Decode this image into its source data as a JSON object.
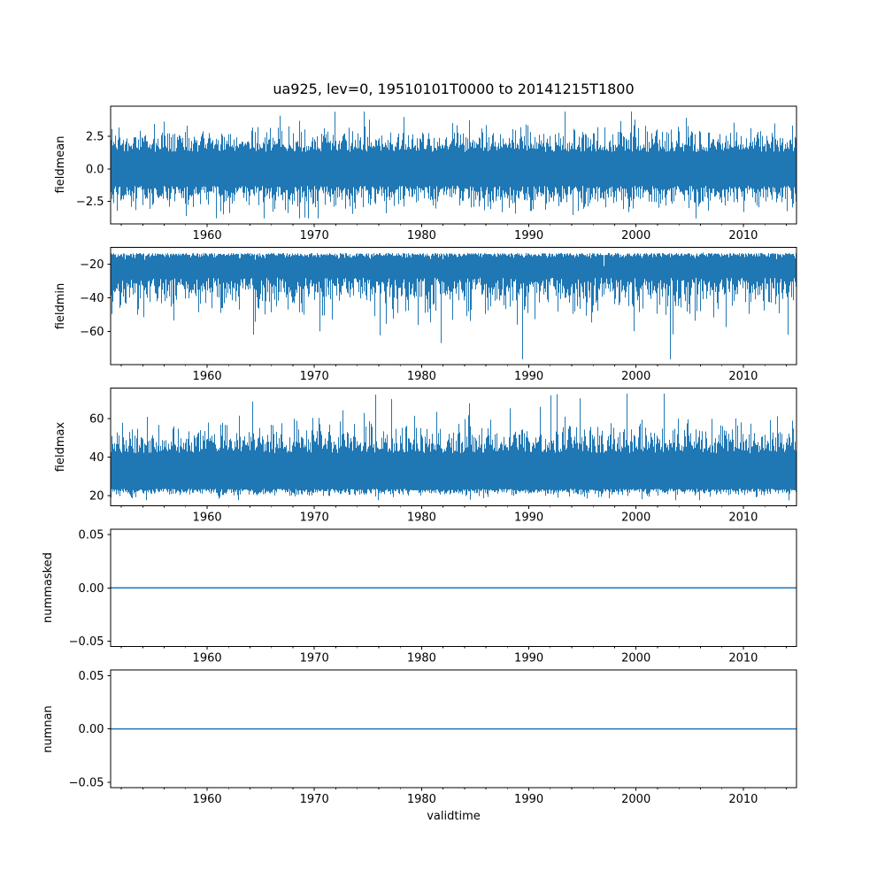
{
  "chart_data": {
    "type": "line",
    "title": "ua925, lev=0, 19510101T0000 to 20141215T1800",
    "xlabel": "validtime",
    "line_color": "#1f77b4",
    "spine_color": "#000000",
    "background": "#ffffff",
    "grid": false,
    "legend": "none",
    "x_axis": {
      "range": [
        1951.0,
        2014.958
      ],
      "ticks": [
        {
          "value": 1960,
          "label": "1960"
        },
        {
          "value": 1970,
          "label": "1970"
        },
        {
          "value": 1980,
          "label": "1980"
        },
        {
          "value": 1990,
          "label": "1990"
        },
        {
          "value": 2000,
          "label": "2000"
        },
        {
          "value": 2010,
          "label": "2010"
        }
      ],
      "minor_step": 2
    },
    "charts": [
      {
        "ylabel": "fieldmean",
        "yticks": [
          {
            "value": 2.5,
            "label": "2.5"
          },
          {
            "value": 0.0,
            "label": "0.0"
          },
          {
            "value": -2.5,
            "label": "−2.5"
          }
        ],
        "data_min": -3.8,
        "data_max": 4.4,
        "summary": {
          "center": 0.0,
          "typical_band": [
            -2.2,
            2.2
          ]
        },
        "seed": 11,
        "env_top": {
          "base": 1.3,
          "spread": 0.8,
          "spike_prob": 0.1,
          "spike": 0.6
        },
        "env_bottom": {
          "base": -1.3,
          "spread": -0.8,
          "spike_prob": 0.1,
          "spike": -0.55
        }
      },
      {
        "ylabel": "fieldmin",
        "yticks": [
          {
            "value": -20,
            "label": "−20"
          },
          {
            "value": -40,
            "label": "−40"
          },
          {
            "value": -60,
            "label": "−60"
          }
        ],
        "data_min": -76.8,
        "data_max": -13.0,
        "summary": {
          "typical_band": [
            -45,
            -14
          ],
          "deepest_spikes": -76
        },
        "seed": 22,
        "env_top": {
          "base": -13.3,
          "spread": -1.2,
          "spike_prob": 0.04,
          "spike": -1.2
        },
        "env_bottom": {
          "base": -28.0,
          "spread": -9.0,
          "spike_prob": 0.18,
          "spike": -8.0
        }
      },
      {
        "ylabel": "fieldmax",
        "yticks": [
          {
            "value": 60,
            "label": "60"
          },
          {
            "value": 40,
            "label": "40"
          },
          {
            "value": 20,
            "label": "20"
          }
        ],
        "data_min": 17.5,
        "data_max": 73.0,
        "summary": {
          "typical_band": [
            23,
            52
          ],
          "highest_spikes": 73
        },
        "seed": 33,
        "env_top": {
          "base": 42.0,
          "spread": 6.5,
          "spike_prob": 0.15,
          "spike": 6.0
        },
        "env_bottom": {
          "base": 23.5,
          "spread": -1.7,
          "spike_prob": 0.05,
          "spike": -2.2
        }
      },
      {
        "ylabel": "nummasked",
        "yticks": [
          {
            "value": 0.05,
            "label": "0.05"
          },
          {
            "value": 0.0,
            "label": "0.00"
          },
          {
            "value": -0.05,
            "label": "−0.05"
          }
        ],
        "constant": 0.0,
        "ylim": [
          -0.055,
          0.055
        ]
      },
      {
        "ylabel": "numnan",
        "yticks": [
          {
            "value": 0.05,
            "label": "0.05"
          },
          {
            "value": 0.0,
            "label": "0.00"
          },
          {
            "value": -0.05,
            "label": "−0.05"
          }
        ],
        "constant": 0.0,
        "ylim": [
          -0.055,
          0.055
        ]
      }
    ]
  }
}
